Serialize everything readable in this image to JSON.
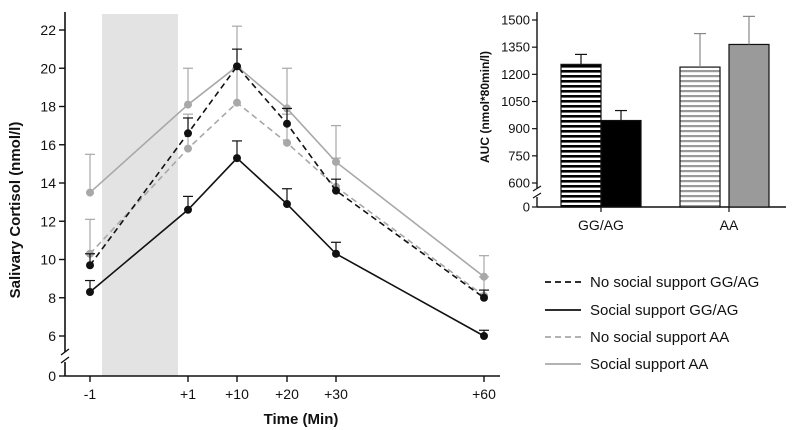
{
  "chart_data": [
    {
      "type": "line",
      "title": "",
      "xlabel": "Time (Min)",
      "ylabel": "Salivary Cortisol (nmol/l)",
      "x_categories": [
        "-1",
        "+1",
        "+10",
        "+20",
        "+30",
        "+60"
      ],
      "x_values": [
        -1,
        1,
        10,
        20,
        30,
        60
      ],
      "y_ticks": [
        "0",
        "6",
        "8",
        "10",
        "12",
        "14",
        "16",
        "18",
        "20",
        "22"
      ],
      "ylim": [
        0,
        22
      ],
      "y_break": [
        0,
        6
      ],
      "shaded_interval": [
        -1,
        1
      ],
      "grid": false,
      "legend_position": "right",
      "series": [
        {
          "name": "No social support GG/AG",
          "color": "#111111",
          "dash": "dashed",
          "values": [
            9.7,
            16.6,
            20.1,
            17.1,
            13.6,
            8.0
          ],
          "error": [
            0.6,
            0.8,
            0.9,
            0.8,
            0.6,
            0.4
          ]
        },
        {
          "name": "Social support GG/AG",
          "color": "#111111",
          "dash": "solid",
          "values": [
            8.3,
            12.6,
            15.3,
            12.9,
            10.3,
            6.0
          ],
          "error": [
            0.6,
            0.7,
            0.9,
            0.8,
            0.6,
            0.3
          ]
        },
        {
          "name": "No social support AA",
          "color": "#a8a8a8",
          "dash": "dashed",
          "values": [
            10.3,
            15.8,
            18.2,
            16.1,
            13.8,
            8.1
          ],
          "error": [
            1.8,
            1.8,
            1.8,
            1.5,
            1.5,
            1.0
          ]
        },
        {
          "name": "Social support AA",
          "color": "#a8a8a8",
          "dash": "solid",
          "values": [
            13.5,
            18.1,
            20.1,
            17.9,
            15.1,
            9.1
          ],
          "error": [
            2.0,
            1.9,
            2.1,
            2.1,
            1.9,
            1.1
          ]
        }
      ]
    },
    {
      "type": "bar",
      "title": "",
      "xlabel": "",
      "ylabel": "AUC (nmol*80min/l)",
      "categories": [
        "GG/AG",
        "AA"
      ],
      "y_ticks": [
        "0",
        "600",
        "750",
        "900",
        "1050",
        "1200",
        "1350",
        "1500"
      ],
      "ylim": [
        0,
        1500
      ],
      "y_break": [
        0,
        600
      ],
      "bars": [
        {
          "category": "GG/AG",
          "series": "No social support GG/AG",
          "value": 1255,
          "error": 55,
          "fill": "hatched-black"
        },
        {
          "category": "GG/AG",
          "series": "Social support GG/AG",
          "value": 945,
          "error": 55,
          "fill": "#000000"
        },
        {
          "category": "AA",
          "series": "No social support AA",
          "value": 1240,
          "error": 185,
          "fill": "hatched-grey"
        },
        {
          "category": "AA",
          "series": "Social support AA",
          "value": 1365,
          "error": 155,
          "fill": "#9a9a9a"
        }
      ]
    }
  ]
}
